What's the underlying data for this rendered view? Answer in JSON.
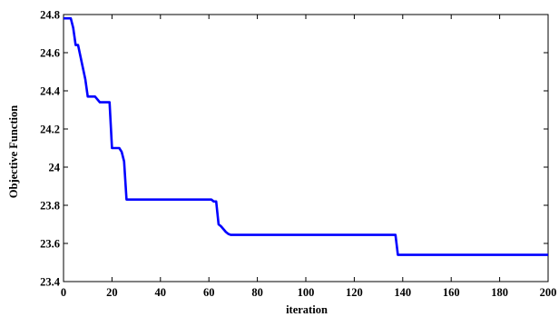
{
  "chart_data": {
    "type": "line",
    "xlabel": "iteration",
    "ylabel": "Objective Function",
    "xlim": [
      0,
      200
    ],
    "ylim": [
      23.4,
      24.8
    ],
    "xticks": [
      0,
      20,
      40,
      60,
      80,
      100,
      120,
      140,
      160,
      180,
      200
    ],
    "yticks": [
      23.4,
      23.6,
      23.8,
      24,
      24.2,
      24.4,
      24.6,
      24.8
    ],
    "ytick_labels": [
      "23.4",
      "23.6",
      "23.8",
      "24",
      "24.2",
      "24.4",
      "24.6",
      "24.8"
    ],
    "xtick_labels": [
      "0",
      "20",
      "40",
      "60",
      "80",
      "100",
      "120",
      "140",
      "160",
      "180",
      "200"
    ],
    "grid": false,
    "line_color": "#0000ff",
    "series": [
      {
        "x": [
          0,
          3,
          4,
          5,
          6,
          7,
          8,
          9,
          10,
          13,
          15,
          19,
          20,
          23,
          24,
          25,
          26,
          61,
          62,
          63,
          64,
          65,
          67,
          68,
          69,
          136,
          137,
          138,
          139,
          200
        ],
        "y": [
          24.78,
          24.78,
          24.73,
          24.64,
          24.64,
          24.58,
          24.52,
          24.46,
          24.37,
          24.37,
          24.34,
          24.34,
          24.1,
          24.1,
          24.08,
          24.03,
          23.83,
          23.83,
          23.82,
          23.82,
          23.7,
          23.69,
          23.66,
          23.65,
          23.645,
          23.645,
          23.645,
          23.54,
          23.54,
          23.54
        ]
      }
    ]
  }
}
